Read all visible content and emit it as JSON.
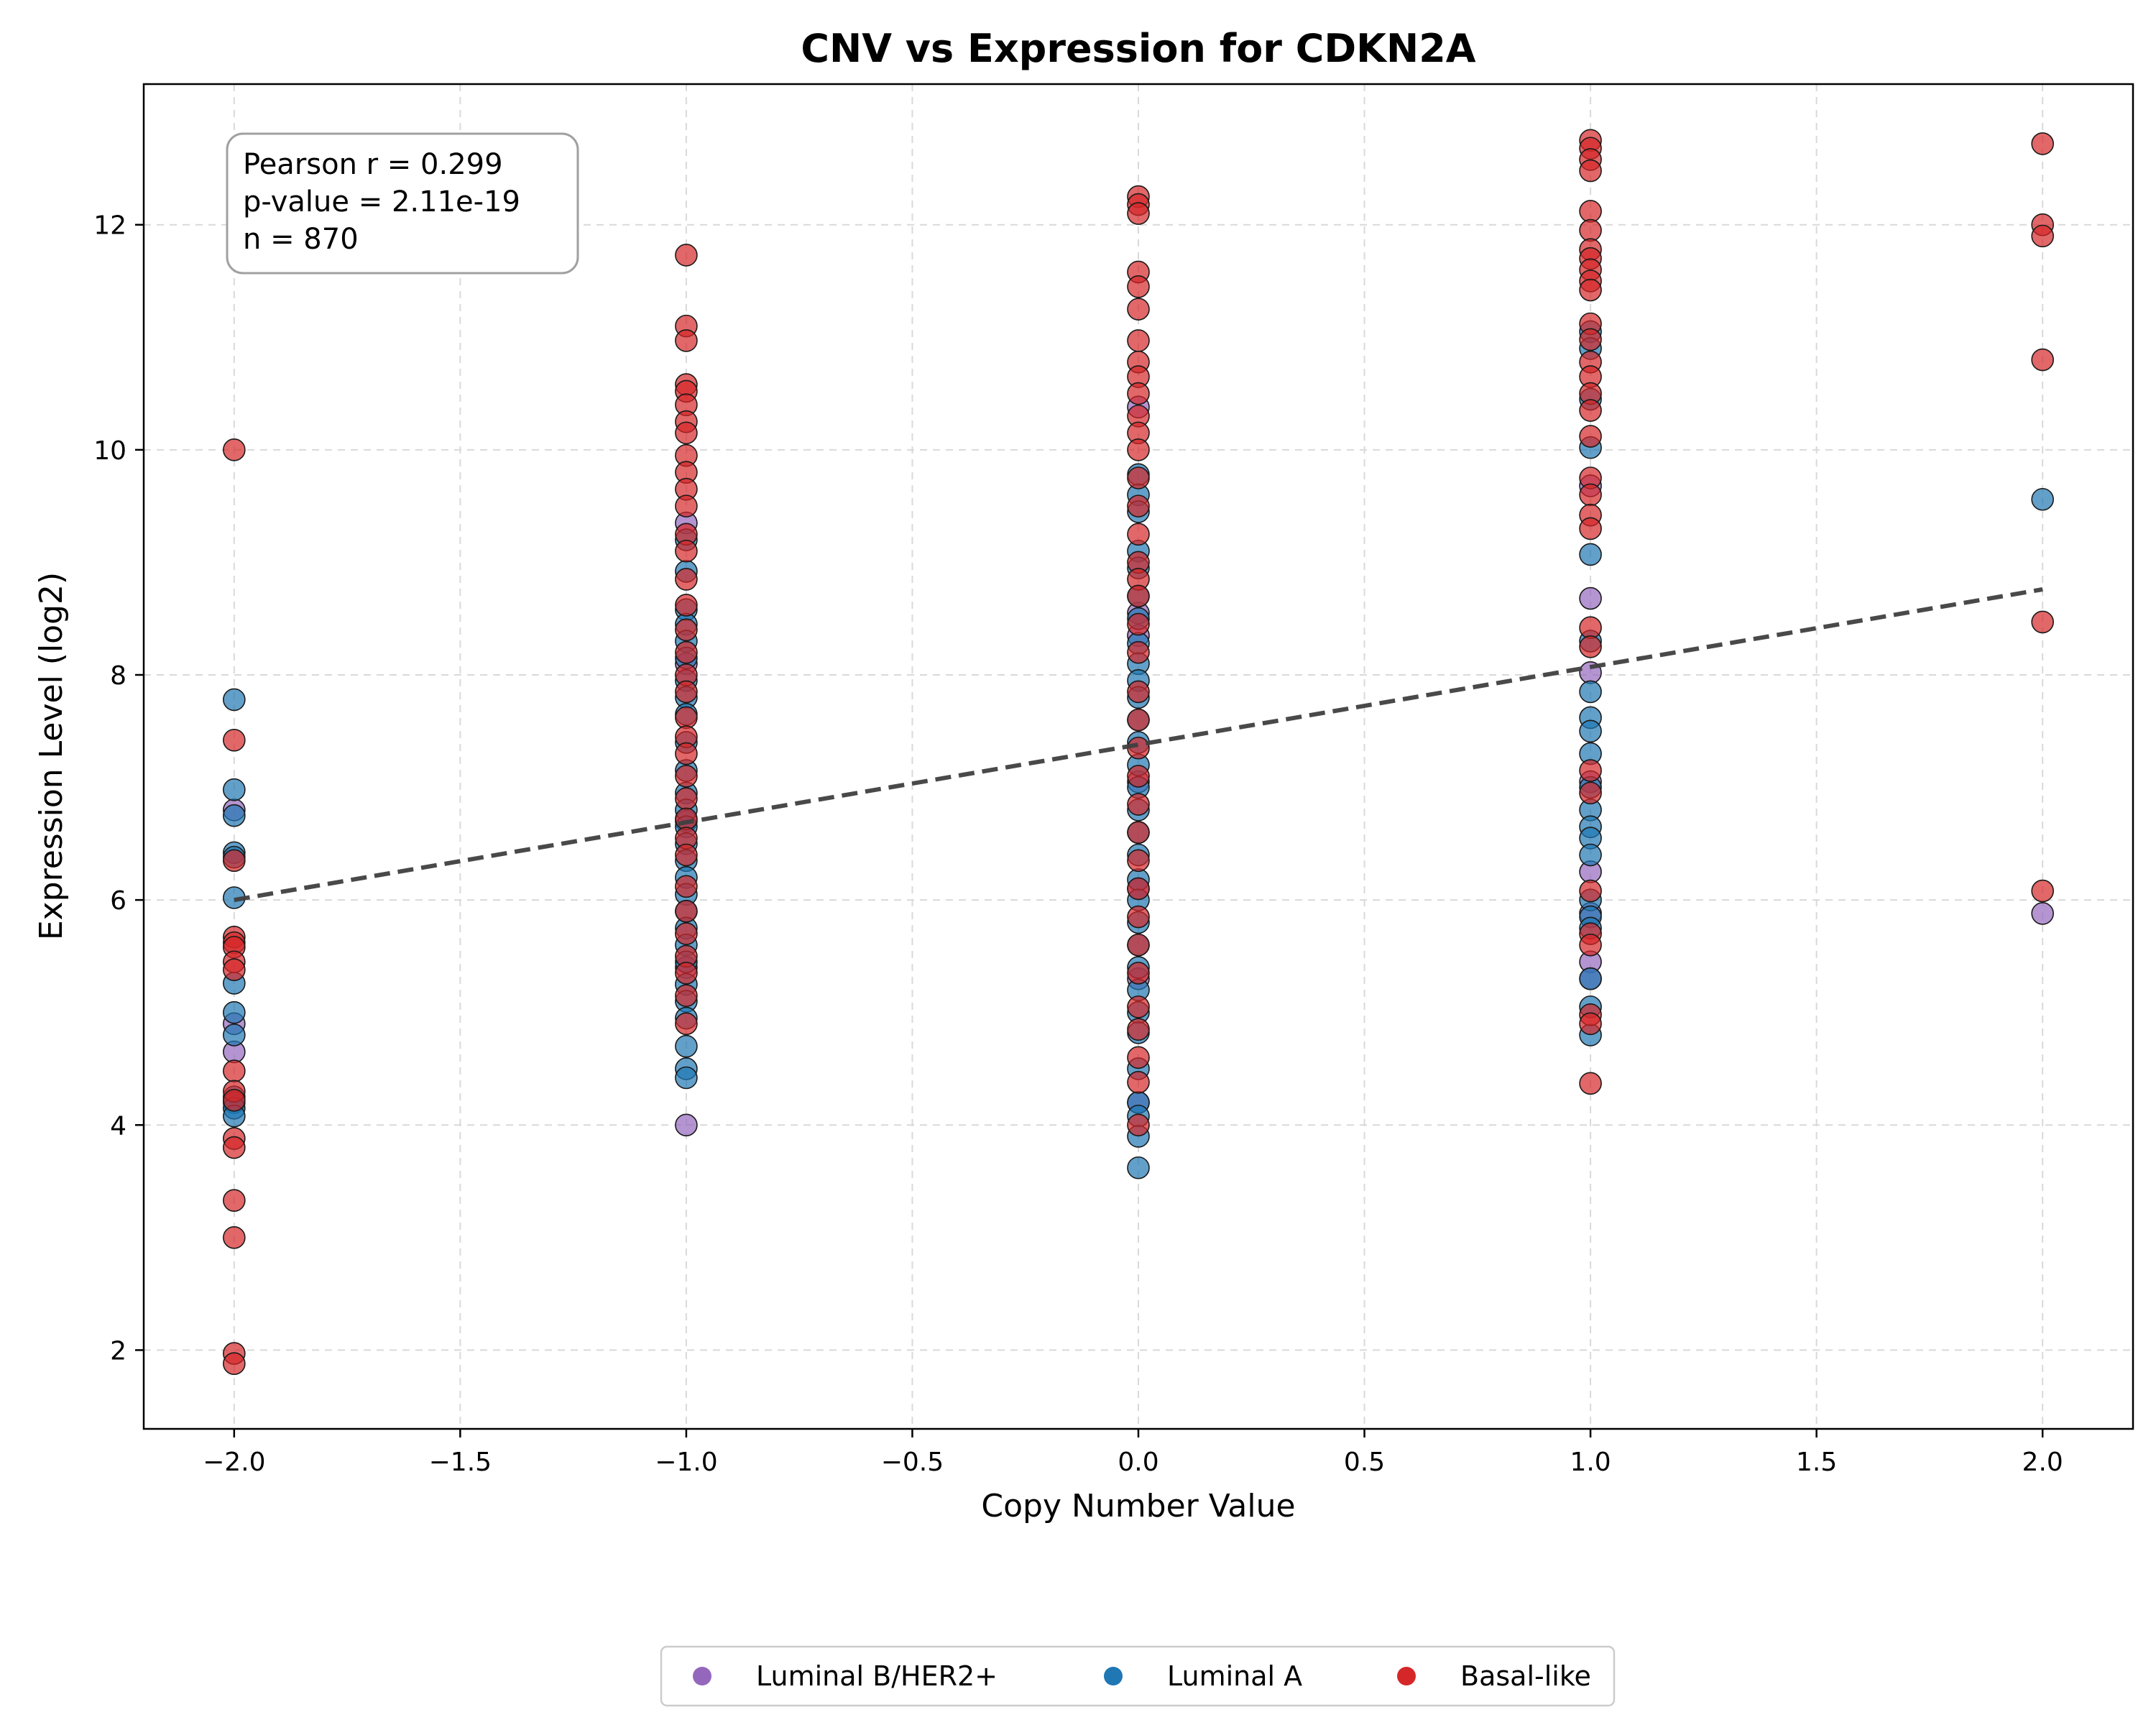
{
  "chart_data": {
    "type": "scatter",
    "title": "CNV vs Expression for CDKN2A",
    "xlabel": "Copy Number Value",
    "ylabel": "Expression Level (log2)",
    "xlim": [
      -2.2,
      2.2
    ],
    "ylim": [
      1.3,
      13.25
    ],
    "x_ticks": [
      -2.0,
      -1.5,
      -1.0,
      -0.5,
      0.0,
      0.5,
      1.0,
      1.5,
      2.0
    ],
    "x_tick_labels": [
      "−2.0",
      "−1.5",
      "−1.0",
      "−0.5",
      "0.0",
      "0.5",
      "1.0",
      "1.5",
      "2.0"
    ],
    "y_ticks": [
      2,
      4,
      6,
      8,
      10,
      12
    ],
    "y_tick_labels": [
      "2",
      "4",
      "6",
      "8",
      "10",
      "12"
    ],
    "grid": true,
    "legend_position": "bottom-center",
    "stats": {
      "lines": [
        "Pearson r = 0.299",
        "p-value = 2.11e-19",
        "n = 870"
      ]
    },
    "trend_line": {
      "style": "dashed",
      "color": "#3f3f3f",
      "x": [
        -2.0,
        2.0
      ],
      "y": [
        6.0,
        8.76
      ]
    },
    "series": [
      {
        "name": "Luminal B/HER2+",
        "color": "#9467bd",
        "points": [
          [
            -2.0,
            6.8
          ],
          [
            -2.0,
            4.9
          ],
          [
            -2.0,
            4.65
          ],
          [
            -1.0,
            4.0
          ],
          [
            -1.0,
            9.35
          ],
          [
            -1.0,
            8.1
          ],
          [
            -1.0,
            6.7
          ],
          [
            -1.0,
            5.4
          ],
          [
            0.0,
            10.38
          ],
          [
            0.0,
            8.55
          ],
          [
            0.0,
            8.35
          ],
          [
            0.0,
            7.05
          ],
          [
            0.0,
            6.1
          ],
          [
            0.0,
            5.3
          ],
          [
            0.0,
            4.2
          ],
          [
            1.0,
            9.68
          ],
          [
            1.0,
            8.68
          ],
          [
            1.0,
            8.02
          ],
          [
            1.0,
            7.05
          ],
          [
            1.0,
            6.25
          ],
          [
            1.0,
            5.88
          ],
          [
            1.0,
            5.45
          ],
          [
            1.0,
            5.3
          ],
          [
            2.0,
            5.88
          ]
        ]
      },
      {
        "name": "Luminal A",
        "color": "#1f77b4",
        "points": [
          [
            -2.0,
            7.78
          ],
          [
            -2.0,
            6.98
          ],
          [
            -2.0,
            6.75
          ],
          [
            -2.0,
            6.42
          ],
          [
            -2.0,
            6.38
          ],
          [
            -2.0,
            6.02
          ],
          [
            -2.0,
            5.26
          ],
          [
            -2.0,
            5.0
          ],
          [
            -2.0,
            4.8
          ],
          [
            -2.0,
            4.25
          ],
          [
            -2.0,
            4.2
          ],
          [
            -2.0,
            4.15
          ],
          [
            -2.0,
            4.08
          ],
          [
            -1.0,
            9.2
          ],
          [
            -1.0,
            8.92
          ],
          [
            -1.0,
            8.58
          ],
          [
            -1.0,
            8.45
          ],
          [
            -1.0,
            8.3
          ],
          [
            -1.0,
            8.15
          ],
          [
            -1.0,
            7.95
          ],
          [
            -1.0,
            7.8
          ],
          [
            -1.0,
            7.65
          ],
          [
            -1.0,
            7.4
          ],
          [
            -1.0,
            7.15
          ],
          [
            -1.0,
            6.95
          ],
          [
            -1.0,
            6.8
          ],
          [
            -1.0,
            6.65
          ],
          [
            -1.0,
            6.5
          ],
          [
            -1.0,
            6.35
          ],
          [
            -1.0,
            6.2
          ],
          [
            -1.0,
            6.05
          ],
          [
            -1.0,
            5.9
          ],
          [
            -1.0,
            5.75
          ],
          [
            -1.0,
            5.6
          ],
          [
            -1.0,
            5.45
          ],
          [
            -1.0,
            5.25
          ],
          [
            -1.0,
            5.1
          ],
          [
            -1.0,
            4.95
          ],
          [
            -1.0,
            4.7
          ],
          [
            -1.0,
            4.5
          ],
          [
            -1.0,
            4.42
          ],
          [
            0.0,
            9.78
          ],
          [
            0.0,
            9.6
          ],
          [
            0.0,
            9.45
          ],
          [
            0.0,
            9.1
          ],
          [
            0.0,
            8.95
          ],
          [
            0.0,
            8.7
          ],
          [
            0.0,
            8.5
          ],
          [
            0.0,
            8.28
          ],
          [
            0.0,
            8.1
          ],
          [
            0.0,
            7.95
          ],
          [
            0.0,
            7.8
          ],
          [
            0.0,
            7.6
          ],
          [
            0.0,
            7.4
          ],
          [
            0.0,
            7.2
          ],
          [
            0.0,
            7.0
          ],
          [
            0.0,
            6.8
          ],
          [
            0.0,
            6.6
          ],
          [
            0.0,
            6.4
          ],
          [
            0.0,
            6.18
          ],
          [
            0.0,
            6.0
          ],
          [
            0.0,
            5.8
          ],
          [
            0.0,
            5.6
          ],
          [
            0.0,
            5.4
          ],
          [
            0.0,
            5.2
          ],
          [
            0.0,
            5.0
          ],
          [
            0.0,
            4.82
          ],
          [
            0.0,
            4.5
          ],
          [
            0.0,
            4.2
          ],
          [
            0.0,
            4.08
          ],
          [
            0.0,
            3.9
          ],
          [
            0.0,
            3.62
          ],
          [
            1.0,
            11.05
          ],
          [
            1.0,
            10.9
          ],
          [
            1.0,
            10.45
          ],
          [
            1.0,
            10.02
          ],
          [
            1.0,
            9.07
          ],
          [
            1.0,
            8.3
          ],
          [
            1.0,
            7.85
          ],
          [
            1.0,
            7.62
          ],
          [
            1.0,
            7.5
          ],
          [
            1.0,
            7.3
          ],
          [
            1.0,
            7.0
          ],
          [
            1.0,
            6.8
          ],
          [
            1.0,
            6.65
          ],
          [
            1.0,
            6.55
          ],
          [
            1.0,
            6.4
          ],
          [
            1.0,
            6.0
          ],
          [
            1.0,
            5.85
          ],
          [
            1.0,
            5.75
          ],
          [
            1.0,
            5.3
          ],
          [
            1.0,
            5.05
          ],
          [
            1.0,
            4.8
          ],
          [
            2.0,
            9.56
          ]
        ]
      },
      {
        "name": "Basal-like",
        "color": "#d62728",
        "points": [
          [
            -2.0,
            10.0
          ],
          [
            -2.0,
            7.42
          ],
          [
            -2.0,
            6.35
          ],
          [
            -2.0,
            5.67
          ],
          [
            -2.0,
            5.62
          ],
          [
            -2.0,
            5.58
          ],
          [
            -2.0,
            5.45
          ],
          [
            -2.0,
            5.38
          ],
          [
            -2.0,
            4.48
          ],
          [
            -2.0,
            4.3
          ],
          [
            -2.0,
            4.22
          ],
          [
            -2.0,
            3.88
          ],
          [
            -2.0,
            3.8
          ],
          [
            -2.0,
            3.33
          ],
          [
            -2.0,
            3.0
          ],
          [
            -2.0,
            1.97
          ],
          [
            -2.0,
            1.88
          ],
          [
            -1.0,
            11.73
          ],
          [
            -1.0,
            11.1
          ],
          [
            -1.0,
            10.97
          ],
          [
            -1.0,
            10.58
          ],
          [
            -1.0,
            10.52
          ],
          [
            -1.0,
            10.4
          ],
          [
            -1.0,
            10.25
          ],
          [
            -1.0,
            10.15
          ],
          [
            -1.0,
            9.95
          ],
          [
            -1.0,
            9.8
          ],
          [
            -1.0,
            9.65
          ],
          [
            -1.0,
            9.5
          ],
          [
            -1.0,
            9.25
          ],
          [
            -1.0,
            9.1
          ],
          [
            -1.0,
            8.85
          ],
          [
            -1.0,
            8.62
          ],
          [
            -1.0,
            8.4
          ],
          [
            -1.0,
            8.2
          ],
          [
            -1.0,
            8.0
          ],
          [
            -1.0,
            7.85
          ],
          [
            -1.0,
            7.62
          ],
          [
            -1.0,
            7.45
          ],
          [
            -1.0,
            7.3
          ],
          [
            -1.0,
            7.1
          ],
          [
            -1.0,
            6.9
          ],
          [
            -1.0,
            6.72
          ],
          [
            -1.0,
            6.55
          ],
          [
            -1.0,
            6.4
          ],
          [
            -1.0,
            6.12
          ],
          [
            -1.0,
            5.9
          ],
          [
            -1.0,
            5.7
          ],
          [
            -1.0,
            5.5
          ],
          [
            -1.0,
            5.35
          ],
          [
            -1.0,
            5.15
          ],
          [
            -1.0,
            4.9
          ],
          [
            0.0,
            12.25
          ],
          [
            0.0,
            12.18
          ],
          [
            0.0,
            12.1
          ],
          [
            0.0,
            11.58
          ],
          [
            0.0,
            11.45
          ],
          [
            0.0,
            11.25
          ],
          [
            0.0,
            10.97
          ],
          [
            0.0,
            10.78
          ],
          [
            0.0,
            10.65
          ],
          [
            0.0,
            10.5
          ],
          [
            0.0,
            10.3
          ],
          [
            0.0,
            10.15
          ],
          [
            0.0,
            10.0
          ],
          [
            0.0,
            9.75
          ],
          [
            0.0,
            9.5
          ],
          [
            0.0,
            9.25
          ],
          [
            0.0,
            9.0
          ],
          [
            0.0,
            8.85
          ],
          [
            0.0,
            8.7
          ],
          [
            0.0,
            8.45
          ],
          [
            0.0,
            8.2
          ],
          [
            0.0,
            7.85
          ],
          [
            0.0,
            7.6
          ],
          [
            0.0,
            7.35
          ],
          [
            0.0,
            7.1
          ],
          [
            0.0,
            6.85
          ],
          [
            0.0,
            6.6
          ],
          [
            0.0,
            6.35
          ],
          [
            0.0,
            6.1
          ],
          [
            0.0,
            5.85
          ],
          [
            0.0,
            5.6
          ],
          [
            0.0,
            5.35
          ],
          [
            0.0,
            5.05
          ],
          [
            0.0,
            4.85
          ],
          [
            0.0,
            4.6
          ],
          [
            0.0,
            4.38
          ],
          [
            0.0,
            4.0
          ],
          [
            1.0,
            12.75
          ],
          [
            1.0,
            12.68
          ],
          [
            1.0,
            12.58
          ],
          [
            1.0,
            12.48
          ],
          [
            1.0,
            12.12
          ],
          [
            1.0,
            11.95
          ],
          [
            1.0,
            11.78
          ],
          [
            1.0,
            11.7
          ],
          [
            1.0,
            11.6
          ],
          [
            1.0,
            11.5
          ],
          [
            1.0,
            11.42
          ],
          [
            1.0,
            11.12
          ],
          [
            1.0,
            10.98
          ],
          [
            1.0,
            10.78
          ],
          [
            1.0,
            10.65
          ],
          [
            1.0,
            10.5
          ],
          [
            1.0,
            10.35
          ],
          [
            1.0,
            10.12
          ],
          [
            1.0,
            9.75
          ],
          [
            1.0,
            9.6
          ],
          [
            1.0,
            9.42
          ],
          [
            1.0,
            9.3
          ],
          [
            1.0,
            8.42
          ],
          [
            1.0,
            8.25
          ],
          [
            1.0,
            7.15
          ],
          [
            1.0,
            6.95
          ],
          [
            1.0,
            6.08
          ],
          [
            1.0,
            5.7
          ],
          [
            1.0,
            5.6
          ],
          [
            1.0,
            4.98
          ],
          [
            1.0,
            4.9
          ],
          [
            1.0,
            4.37
          ],
          [
            2.0,
            12.72
          ],
          [
            2.0,
            12.0
          ],
          [
            2.0,
            11.9
          ],
          [
            2.0,
            10.8
          ],
          [
            2.0,
            8.47
          ],
          [
            2.0,
            6.08
          ]
        ]
      }
    ]
  }
}
